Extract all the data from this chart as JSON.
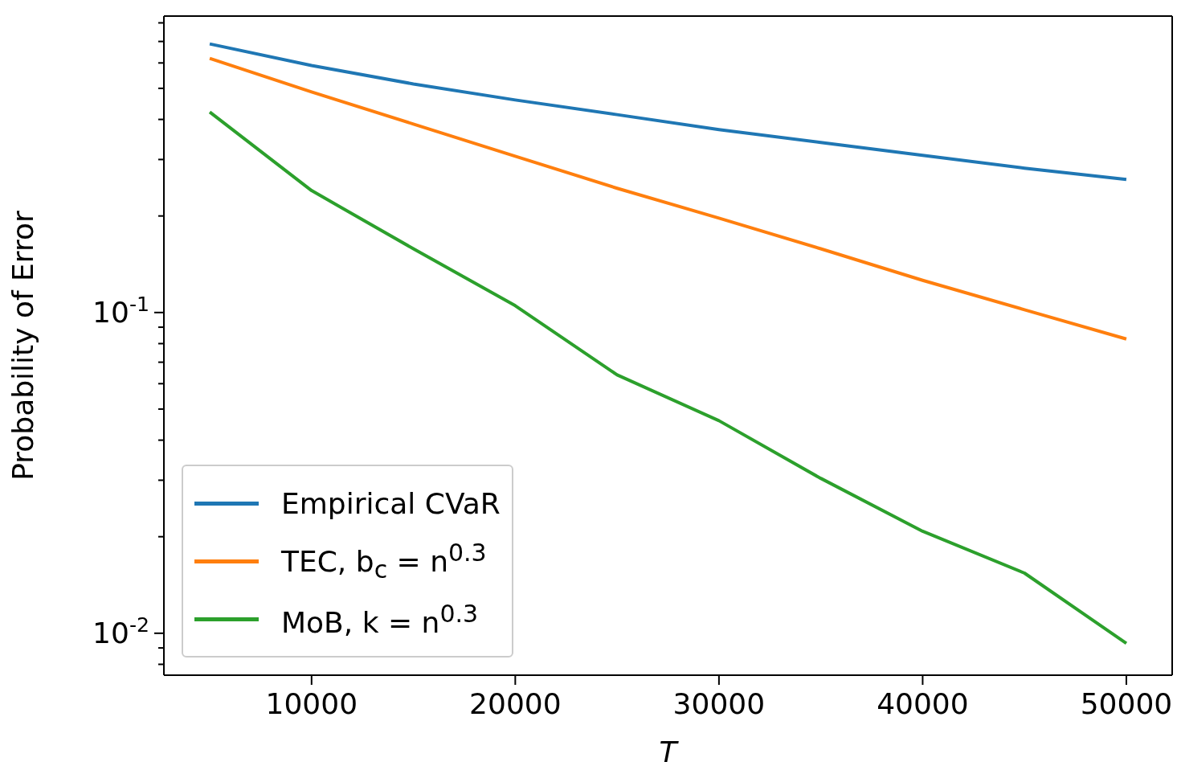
{
  "chart_data": {
    "type": "line",
    "xlabel": "T",
    "ylabel": "Probability of Error",
    "log": "y",
    "legend": "bottom left",
    "marker": "none",
    "line_style": "solid",
    "grid": false,
    "x": [
      5000,
      10000,
      15000,
      20000,
      25000,
      30000,
      35000,
      40000,
      45000,
      50000
    ],
    "xlim": [
      2750,
      52250
    ],
    "xticks": [
      10000,
      20000,
      30000,
      40000,
      50000
    ],
    "ylim": [
      0.0074,
      0.84
    ],
    "yticks": [
      {
        "value": 0.008,
        "label": null
      },
      {
        "value": 0.009,
        "label": null
      },
      {
        "value": 0.01,
        "label": "10$^{-2}$"
      },
      {
        "value": 0.02,
        "label": null
      },
      {
        "value": 0.03,
        "label": null
      },
      {
        "value": 0.04,
        "label": null
      },
      {
        "value": 0.05,
        "label": null
      },
      {
        "value": 0.06,
        "label": null
      },
      {
        "value": 0.07,
        "label": null
      },
      {
        "value": 0.08,
        "label": null
      },
      {
        "value": 0.09,
        "label": null
      },
      {
        "value": 0.1,
        "label": "10$^{-1}$"
      },
      {
        "value": 0.2,
        "label": null
      },
      {
        "value": 0.3,
        "label": null
      },
      {
        "value": 0.4,
        "label": null
      },
      {
        "value": 0.5,
        "label": null
      },
      {
        "value": 0.6,
        "label": null
      },
      {
        "value": 0.7,
        "label": null
      },
      {
        "value": 0.8,
        "label": null
      }
    ],
    "series": [
      {
        "name": "Empirical CVaR",
        "color": "#1f77b4",
        "values": [
          0.688,
          0.589,
          0.516,
          0.46,
          0.414,
          0.372,
          0.339,
          0.309,
          0.282,
          0.26
        ]
      },
      {
        "name": "TEC, b$_{c}$ = n$^{0.3}$",
        "color": "#ff7f0e",
        "values": [
          0.62,
          0.487,
          0.387,
          0.307,
          0.244,
          0.197,
          0.158,
          0.126,
          0.102,
          0.0827
        ]
      },
      {
        "name": "MoB, k = n$^{0.3}$",
        "color": "#2ca02c",
        "values": [
          0.422,
          0.24,
          0.158,
          0.105,
          0.0639,
          0.046,
          0.0304,
          0.0208,
          0.0154,
          0.0093
        ]
      }
    ]
  }
}
